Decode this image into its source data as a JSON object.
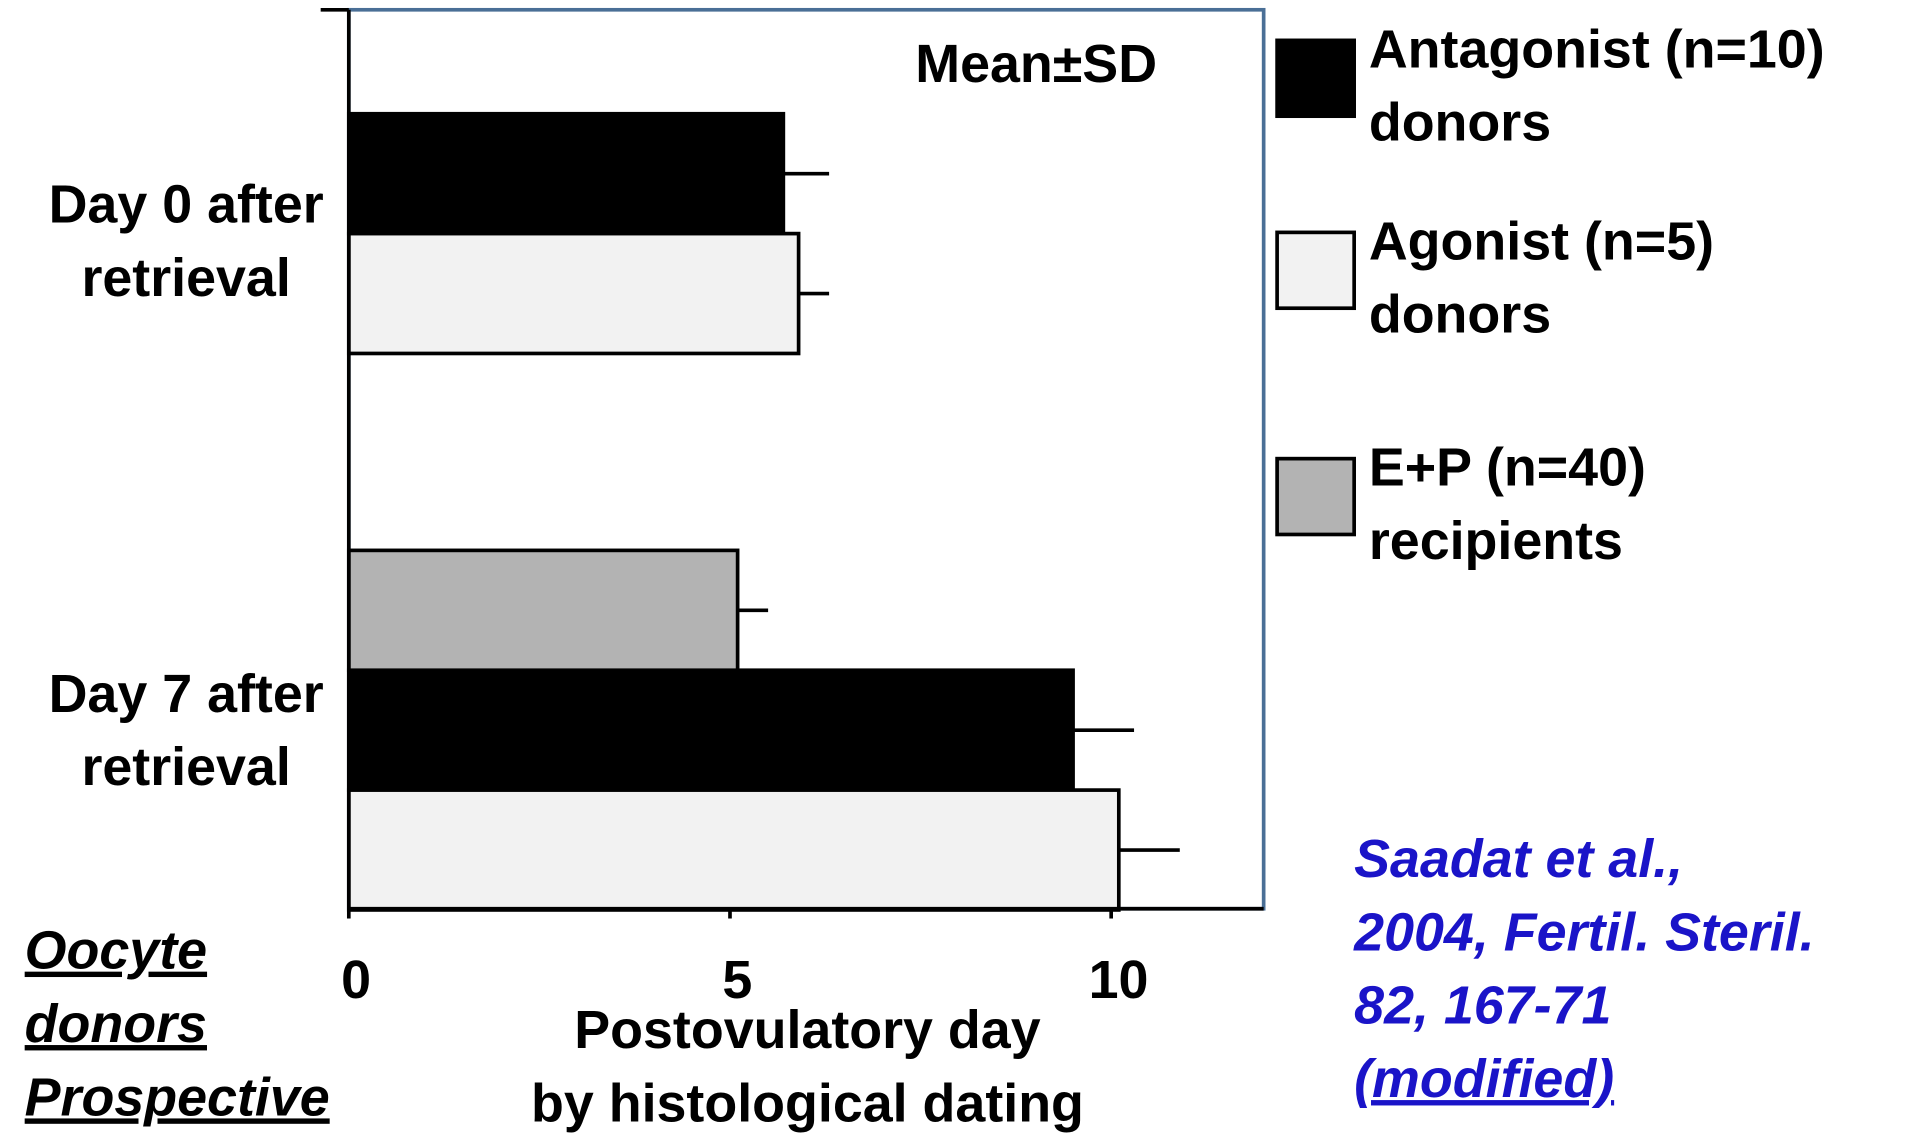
{
  "chart_data": {
    "type": "bar",
    "orientation": "horizontal",
    "annotation": "Mean±SD",
    "categories": [
      "Day 0 after retrieval",
      "Day 7 after retrieval"
    ],
    "series": [
      {
        "name": "Antagonist (n=10) donors",
        "color": "#000000",
        "values": [
          5.7,
          9.5
        ],
        "errors": [
          0.6,
          0.8
        ]
      },
      {
        "name": "Agonist (n=5) donors",
        "color": "#f2f2f2",
        "values": [
          5.9,
          10.1
        ],
        "errors": [
          0.4,
          0.8
        ]
      },
      {
        "name": "E+P (n=40) recipients",
        "color": "#b3b3b3",
        "values": [
          null,
          5.1
        ],
        "errors": [
          null,
          0.4
        ]
      }
    ],
    "x_label": "Postovulatory day by histological dating",
    "xlim": [
      0,
      12
    ],
    "xticks": [
      0,
      5,
      10
    ],
    "side_note": [
      "Oocyte",
      "donors",
      "Prospective"
    ],
    "citation": [
      "Saadat et al.,",
      "2004, Fertil. Steril.",
      "82, 167-71",
      "(modified)"
    ]
  }
}
